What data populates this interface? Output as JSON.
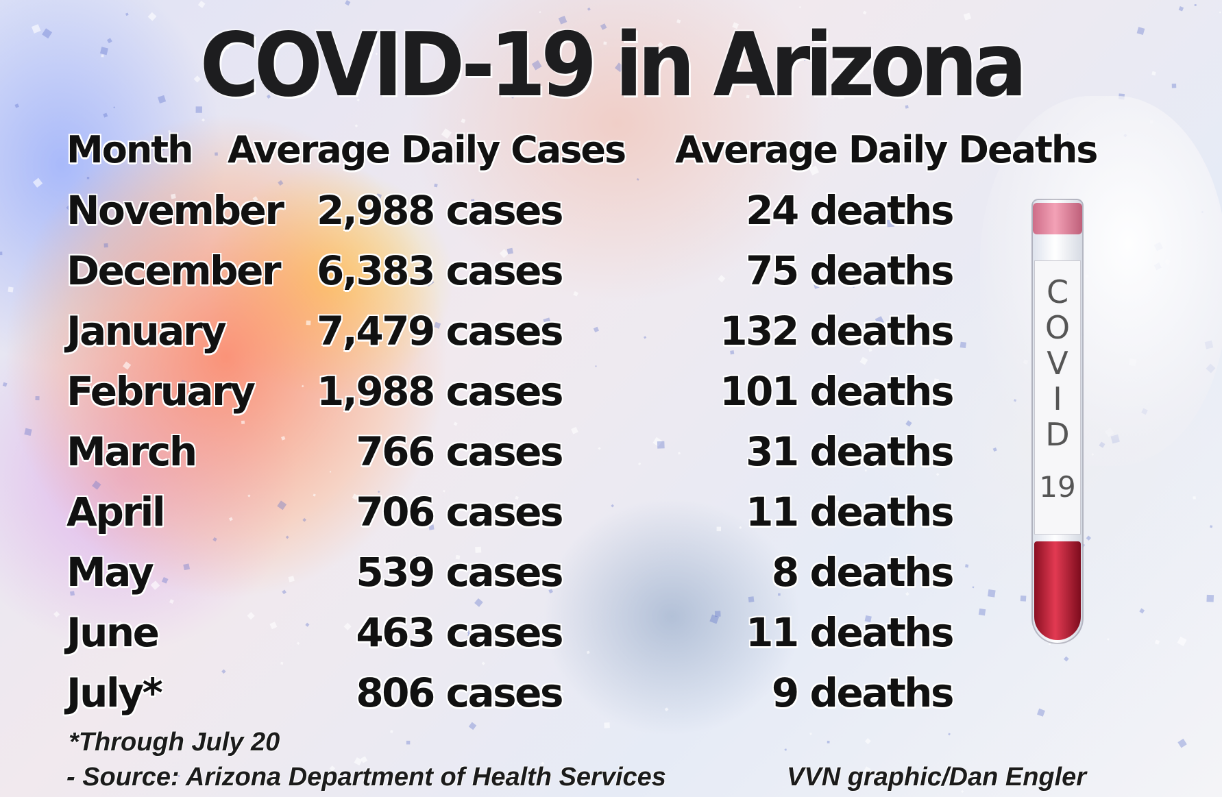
{
  "title": "COVID-19 in Arizona",
  "headers": {
    "month": "Month",
    "cases": "Average Daily Cases",
    "deaths": "Average Daily Deaths"
  },
  "rows": [
    {
      "month": "November",
      "cases": "2,988 cases",
      "deaths": "24 deaths"
    },
    {
      "month": "December",
      "cases": "6,383 cases",
      "deaths": "75 deaths"
    },
    {
      "month": "January",
      "cases": "7,479  cases",
      "deaths": "132 deaths"
    },
    {
      "month": "February",
      "cases": "1,988 cases",
      "deaths": "101 deaths"
    },
    {
      "month": "March",
      "cases": "766 cases",
      "deaths": "31 deaths"
    },
    {
      "month": "April",
      "cases": "706 cases",
      "deaths": "11 deaths"
    },
    {
      "month": "May",
      "cases": "539 cases",
      "deaths": "8 deaths"
    },
    {
      "month": "June",
      "cases": "463 cases",
      "deaths": "11 deaths"
    },
    {
      "month": "July*",
      "cases": "806  cases",
      "deaths": "9 deaths"
    }
  ],
  "footnote": "*Through July 20",
  "source": "- Source: Arizona Department of Health Services",
  "credit": "VVN graphic/Dan Engler",
  "tube": {
    "label_letters": "C\nO\nV\nI\nD",
    "label_number": "19"
  },
  "colors": {
    "text": "#111111",
    "blood": "#c4182f",
    "background_warm": "#ff7a50",
    "background_cool": "#9aaaff"
  }
}
